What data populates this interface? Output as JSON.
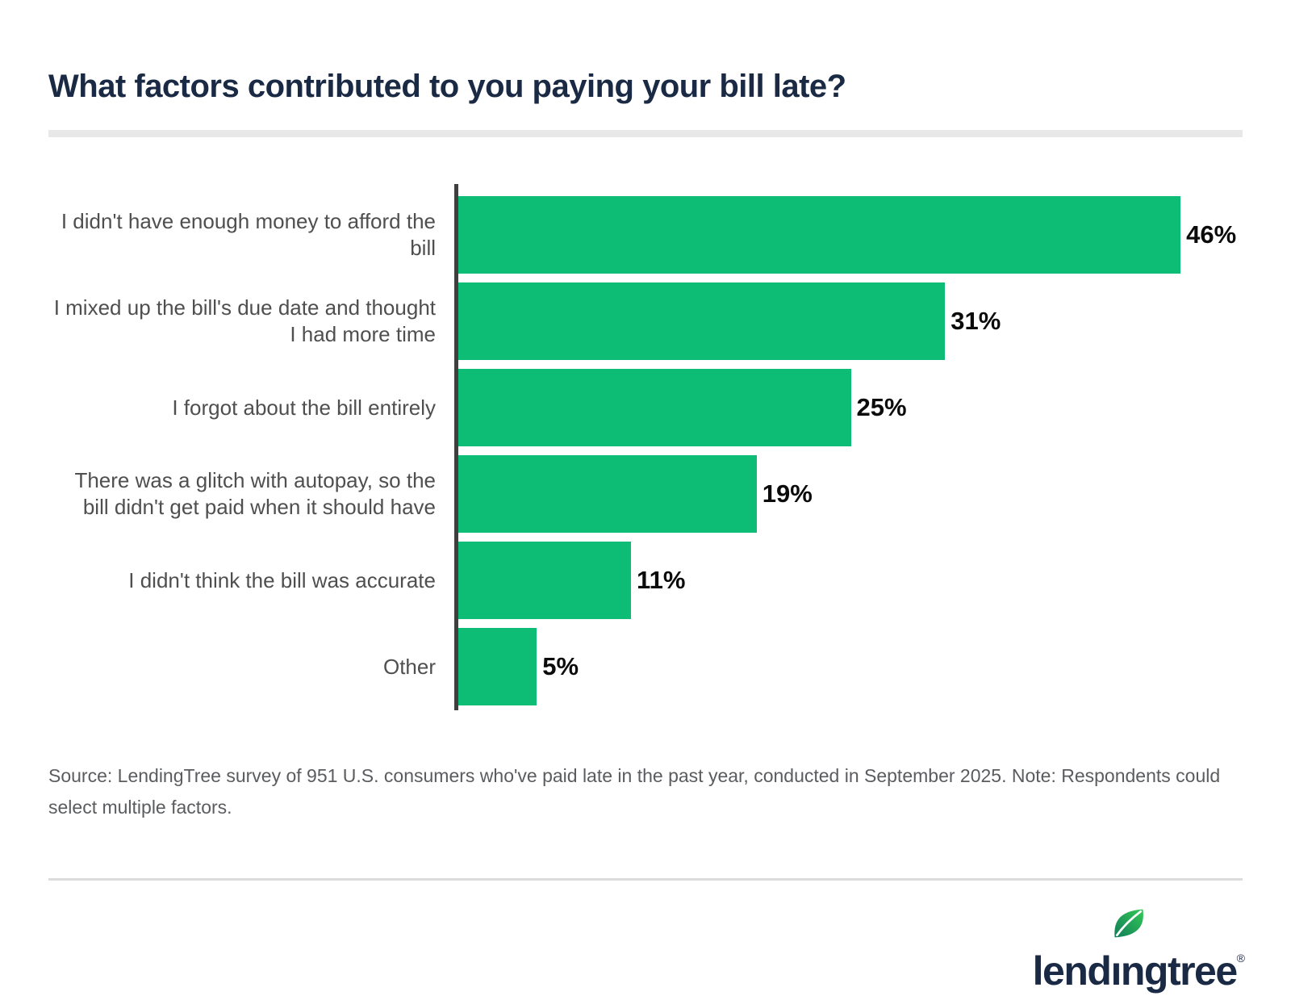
{
  "title": "What factors contributed to you paying your bill late?",
  "chart_data": {
    "type": "bar",
    "orientation": "horizontal",
    "title": "What factors contributed to you paying your bill late?",
    "categories": [
      "I didn't have enough money to afford the bill",
      "I mixed up the bill's due date and thought I had more time",
      "I forgot about the bill entirely",
      "There was a glitch with autopay, so the bill didn't get paid when it should have",
      "I didn't think the bill was accurate",
      "Other"
    ],
    "values": [
      46,
      31,
      25,
      19,
      11,
      5
    ],
    "value_suffix": "%",
    "xlim": [
      0,
      50
    ],
    "grid": false,
    "legend": false,
    "bar_color": "#0dbd76",
    "axis_color": "#3f3f3f",
    "category_label_color": "#4f4f4f",
    "value_label_color": "#0b0b0b"
  },
  "source_note": "Source: LendingTree survey of 951 U.S. consumers who've paid late in the past year, conducted in September 2025. Note: Respondents could select multiple factors.",
  "branding": {
    "logo_full": "lendingtree",
    "logo_part1": "lend",
    "logo_dotless_i": "ı",
    "logo_part2": "ngtree",
    "registered_mark": "®",
    "navy": "#1b2a44",
    "leaf_green_light": "#33cb57",
    "leaf_green_dark": "#117a58"
  },
  "colors": {
    "title": "#1b2a44",
    "title_divider": "#e8e8e8",
    "footer_rule": "#dcdcdc",
    "source_text": "#5a5c5f",
    "background": "#ffffff"
  }
}
